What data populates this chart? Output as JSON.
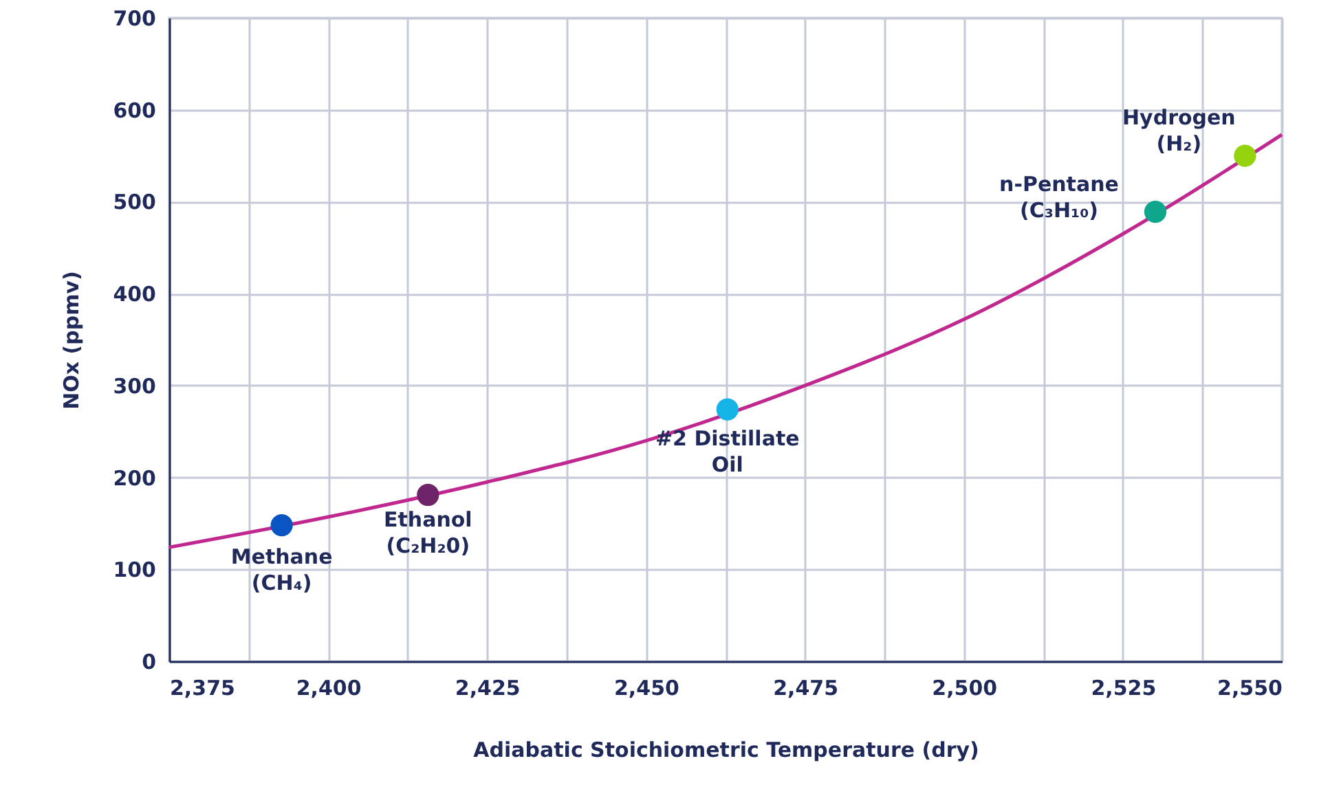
{
  "chart_data": {
    "type": "line",
    "xlabel": "Adiabatic Stoichiometric Temperature (dry)",
    "ylabel": "NOx (ppmv)",
    "series": [
      {
        "marker": "none",
        "color": "#c0288f",
        "x": [
          2375,
          2400,
          2425,
          2450,
          2475,
          2500,
          2525,
          2550
        ],
        "values": [
          124,
          157,
          195,
          240,
          300,
          372,
          465,
          573
        ]
      },
      {
        "type": "scatter",
        "marker": "circle",
        "x": [
          2392.7,
          2415.7,
          2462.8,
          2530.1,
          2544.2
        ],
        "values": [
          148,
          181,
          274,
          489,
          550
        ],
        "colors": [
          "#0b55c2",
          "#6e2468",
          "#14b4e6",
          "#0fa68c",
          "#95d30f"
        ]
      }
    ],
    "annotations": [
      {
        "text": "Methane\n(CH₄)",
        "x": 2392.7,
        "y": 148
      },
      {
        "text": "Ethanol\n(C₂H₂0)",
        "x": 2415.7,
        "y": 181
      },
      {
        "text": "#2 Distillate\nOil",
        "x": 2462.8,
        "y": 274
      },
      {
        "text": "n-Pentane\n(C₃H₁₀)",
        "x": 2530.1,
        "y": 489
      },
      {
        "text": "Hydrogen\n(H₂)",
        "x": 2544.2,
        "y": 550
      }
    ],
    "xlim": [
      2375,
      2550
    ],
    "xticks": [
      {
        "value": 2375,
        "label": "2,375"
      },
      {
        "value": 2387.5,
        "label": null
      },
      {
        "value": 2400,
        "label": "2,400"
      },
      {
        "value": 2412.5,
        "label": null
      },
      {
        "value": 2425,
        "label": "2,425"
      },
      {
        "value": 2437.5,
        "label": null
      },
      {
        "value": 2450,
        "label": "2,450"
      },
      {
        "value": 2462.5,
        "label": null
      },
      {
        "value": 2475,
        "label": "2,475"
      },
      {
        "value": 2487.5,
        "label": null
      },
      {
        "value": 2500,
        "label": "2,500"
      },
      {
        "value": 2512.5,
        "label": null
      },
      {
        "value": 2525,
        "label": "2,525"
      },
      {
        "value": 2537.5,
        "label": null
      },
      {
        "value": 2550,
        "label": "2,550"
      }
    ],
    "ylim": [
      0,
      700
    ],
    "yticks": [
      0,
      100,
      200,
      300,
      400,
      500,
      600,
      700
    ],
    "grid": true,
    "line_style": "solid"
  }
}
